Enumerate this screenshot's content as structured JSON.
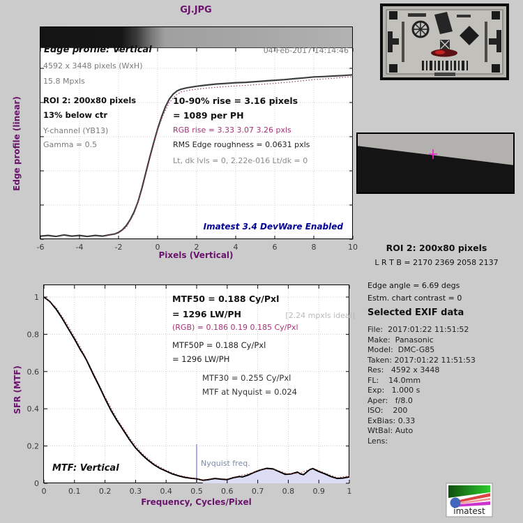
{
  "figure": {
    "bg_color": "#cbcbcb",
    "accent_purple": "#6b146e",
    "magenta": "#a83278",
    "navy": "#000099",
    "nyquist_line_color": "#a8aee8",
    "alias_fill_color": "#dcdcf4"
  },
  "edge_chart": {
    "heading": "Edge profile: Vertical",
    "datetime": "04-Feb-2017 14:14:46",
    "info1": "4592 x 3448 pixels (WxH)",
    "info2": "15.8 Mpxls",
    "roi_line1": "ROI 2:  200x80 pixels",
    "roi_line2": "13% below ctr",
    "channel": "Y-channel  (YB13)",
    "gamma": "Gamma = 0.5",
    "rise1": "10-90% rise = 3.16 pixels",
    "rise2": "= 1089 per PH",
    "rgb_rise": "RGB rise = 3.33  3.07  3.26 pxls",
    "roughness": "RMS Edge roughness = 0.0631 pxls",
    "levels": "Lt, dk lvls = 0, 2.22e-016   Lt/dk = 0",
    "watermark": "Imatest 3.4 DevWare Enabled"
  },
  "mtf_chart": {
    "mtf50_1": "MTF50 = 0.188 Cy/Pxl",
    "mtf50_2": "= 1296 LW/PH",
    "ideal": "[2.24 mpxls ideal]",
    "rgb": "(RGB) = 0.186  0.19  0.185 Cy/Pxl",
    "mtf50p_1": "MTF50P = 0.188 Cy/Pxl",
    "mtf50p_2": "= 1296 LW/PH",
    "mtf30": "MTF30 = 0.255 Cy/Pxl",
    "nyquist_mtf": "MTF at Nyquist = 0.024",
    "corner_label": "MTF: Vertical",
    "nyquist_label": "Nyquist freq."
  },
  "right_panel": {
    "roi_title": "ROI 2:  200x80 pixels",
    "roi_bounds": "L R  T B = 2170 2369  2058 2137",
    "edge_angle": "Edge angle = 6.69 degs",
    "chart_contrast": "Estm. chart contrast = 0",
    "exif_title": "Selected EXIF data",
    "exif_lines": [
      "File:  2017:01:22 11:51:52",
      "Make:  Panasonic",
      "Model:  DMC-G85",
      "Taken: 2017:01:22 11:51:53",
      "Res:   4592 x 3448",
      "FL:    14.0mm",
      "Exp:   1.000 s",
      "Aper:   f/8.0",
      "ISO:    200",
      "ExBias: 0.33",
      "WtBal: Auto",
      "Lens:"
    ]
  },
  "thumbnails": {
    "test_chart": "sfr-test-chart-photo",
    "edge_roi": "edge-roi-crop"
  },
  "logo": {
    "text": "imatest"
  },
  "chart_data": [
    {
      "type": "line",
      "title": "GJ.JPG",
      "xlabel": "Pixels (Vertical)",
      "ylabel": "Edge profile (linear)",
      "xlim": [
        -6,
        10
      ],
      "ylim": [
        0,
        1
      ],
      "xticks": [
        -6,
        -4,
        -2,
        0,
        2,
        4,
        6,
        8,
        10
      ],
      "yticks": [
        0,
        0.2,
        0.4,
        0.6,
        0.8,
        1
      ],
      "grid": true,
      "series": [
        {
          "name": "edge-profile-y-channel",
          "color": "#3f3f3f",
          "width": 2.2,
          "style": "solid",
          "points": [
            [
              -6,
              0.018
            ],
            [
              -5.6,
              0.022
            ],
            [
              -5.2,
              0.016
            ],
            [
              -4.8,
              0.025
            ],
            [
              -4.4,
              0.018
            ],
            [
              -4,
              0.022
            ],
            [
              -3.6,
              0.016
            ],
            [
              -3.2,
              0.022
            ],
            [
              -2.8,
              0.018
            ],
            [
              -2.5,
              0.025
            ],
            [
              -2.2,
              0.03
            ],
            [
              -2,
              0.04
            ],
            [
              -1.8,
              0.055
            ],
            [
              -1.6,
              0.08
            ],
            [
              -1.4,
              0.115
            ],
            [
              -1.2,
              0.16
            ],
            [
              -1,
              0.22
            ],
            [
              -0.8,
              0.3
            ],
            [
              -0.6,
              0.39
            ],
            [
              -0.4,
              0.48
            ],
            [
              -0.2,
              0.565
            ],
            [
              0,
              0.645
            ],
            [
              0.2,
              0.715
            ],
            [
              0.4,
              0.775
            ],
            [
              0.6,
              0.82
            ],
            [
              0.8,
              0.85
            ],
            [
              1,
              0.868
            ],
            [
              1.2,
              0.878
            ],
            [
              1.5,
              0.886
            ],
            [
              2,
              0.895
            ],
            [
              2.5,
              0.902
            ],
            [
              3,
              0.908
            ],
            [
              3.5,
              0.912
            ],
            [
              4,
              0.916
            ],
            [
              4.5,
              0.918
            ],
            [
              5,
              0.922
            ],
            [
              5.5,
              0.926
            ],
            [
              6,
              0.93
            ],
            [
              6.5,
              0.934
            ],
            [
              7,
              0.939
            ],
            [
              7.5,
              0.944
            ],
            [
              8,
              0.95
            ],
            [
              8.5,
              0.952
            ],
            [
              9,
              0.955
            ],
            [
              9.5,
              0.958
            ],
            [
              10,
              0.962
            ]
          ]
        },
        {
          "name": "edge-profile-fit",
          "color": "#a83278",
          "width": 1.2,
          "style": "dotted",
          "points": [
            [
              -2.6,
              0.02
            ],
            [
              -2,
              0.035
            ],
            [
              -1.6,
              0.07
            ],
            [
              -1.2,
              0.15
            ],
            [
              -0.8,
              0.29
            ],
            [
              -0.4,
              0.47
            ],
            [
              0,
              0.64
            ],
            [
              0.3,
              0.73
            ],
            [
              0.6,
              0.8
            ],
            [
              0.9,
              0.84
            ],
            [
              1.2,
              0.862
            ],
            [
              1.6,
              0.872
            ],
            [
              2,
              0.878
            ],
            [
              2.5,
              0.884
            ],
            [
              3,
              0.889
            ],
            [
              3.5,
              0.893
            ],
            [
              4,
              0.897
            ],
            [
              4.5,
              0.9
            ],
            [
              5,
              0.904
            ],
            [
              5.5,
              0.908
            ],
            [
              6,
              0.912
            ],
            [
              6.5,
              0.917
            ],
            [
              7,
              0.922
            ],
            [
              7.5,
              0.928
            ],
            [
              8,
              0.934
            ],
            [
              8.5,
              0.938
            ],
            [
              9,
              0.942
            ],
            [
              9.5,
              0.947
            ],
            [
              10,
              0.952
            ]
          ]
        }
      ]
    },
    {
      "type": "line",
      "title": "",
      "xlabel": "Frequency, Cycles/Pixel",
      "ylabel": "SFR (MTF)",
      "xlim": [
        0,
        1
      ],
      "ylim": [
        0,
        1
      ],
      "xticks": [
        0,
        0.1,
        0.2,
        0.3,
        0.4,
        0.5,
        0.6,
        0.7,
        0.8,
        0.9,
        1
      ],
      "yticks": [
        0,
        0.2,
        0.4,
        0.6,
        0.8,
        1
      ],
      "grid": true,
      "nyquist": {
        "x": 0.5,
        "height": 0.21
      },
      "fill": {
        "from_x": 0.52,
        "color": "#dcdcf4"
      },
      "key_values": {
        "mtf50": 0.188,
        "mtf50_lwph": 1296,
        "mtf50p": 0.188,
        "mtf30": 0.255,
        "mtf_at_nyquist": 0.024
      },
      "series": [
        {
          "name": "mtf-luminance",
          "color": "#000000",
          "width": 2,
          "style": "solid",
          "points": [
            [
              0,
              1.0
            ],
            [
              0.02,
              0.975
            ],
            [
              0.04,
              0.935
            ],
            [
              0.06,
              0.885
            ],
            [
              0.08,
              0.83
            ],
            [
              0.1,
              0.775
            ],
            [
              0.12,
              0.715
            ],
            [
              0.13,
              0.69
            ],
            [
              0.14,
              0.66
            ],
            [
              0.15,
              0.625
            ],
            [
              0.16,
              0.59
            ],
            [
              0.18,
              0.525
            ],
            [
              0.2,
              0.455
            ],
            [
              0.22,
              0.39
            ],
            [
              0.24,
              0.335
            ],
            [
              0.26,
              0.285
            ],
            [
              0.28,
              0.235
            ],
            [
              0.3,
              0.19
            ],
            [
              0.32,
              0.155
            ],
            [
              0.34,
              0.125
            ],
            [
              0.36,
              0.1
            ],
            [
              0.38,
              0.08
            ],
            [
              0.4,
              0.065
            ],
            [
              0.42,
              0.05
            ],
            [
              0.44,
              0.04
            ],
            [
              0.46,
              0.032
            ],
            [
              0.48,
              0.027
            ],
            [
              0.5,
              0.024
            ],
            [
              0.52,
              0.016
            ],
            [
              0.54,
              0.02
            ],
            [
              0.56,
              0.026
            ],
            [
              0.58,
              0.022
            ],
            [
              0.6,
              0.02
            ],
            [
              0.62,
              0.03
            ],
            [
              0.64,
              0.036
            ],
            [
              0.65,
              0.034
            ],
            [
              0.67,
              0.045
            ],
            [
              0.69,
              0.06
            ],
            [
              0.71,
              0.072
            ],
            [
              0.73,
              0.08
            ],
            [
              0.75,
              0.077
            ],
            [
              0.77,
              0.062
            ],
            [
              0.79,
              0.048
            ],
            [
              0.81,
              0.05
            ],
            [
              0.83,
              0.06
            ],
            [
              0.84,
              0.05
            ],
            [
              0.85,
              0.046
            ],
            [
              0.86,
              0.06
            ],
            [
              0.87,
              0.073
            ],
            [
              0.88,
              0.079
            ],
            [
              0.9,
              0.063
            ],
            [
              0.92,
              0.05
            ],
            [
              0.94,
              0.036
            ],
            [
              0.96,
              0.026
            ],
            [
              0.98,
              0.028
            ],
            [
              1,
              0.034
            ]
          ]
        },
        {
          "name": "mtf-channel-dotted",
          "color": "#993333",
          "width": 1,
          "style": "dotted",
          "points": [
            [
              0,
              1.0
            ],
            [
              0.04,
              0.945
            ],
            [
              0.08,
              0.845
            ],
            [
              0.12,
              0.73
            ],
            [
              0.16,
              0.6
            ],
            [
              0.2,
              0.465
            ],
            [
              0.24,
              0.345
            ],
            [
              0.28,
              0.245
            ],
            [
              0.32,
              0.162
            ],
            [
              0.36,
              0.106
            ],
            [
              0.4,
              0.07
            ],
            [
              0.44,
              0.044
            ],
            [
              0.48,
              0.03
            ],
            [
              0.52,
              0.018
            ],
            [
              0.56,
              0.028
            ],
            [
              0.6,
              0.022
            ],
            [
              0.64,
              0.04
            ],
            [
              0.68,
              0.055
            ],
            [
              0.72,
              0.078
            ],
            [
              0.76,
              0.072
            ],
            [
              0.8,
              0.05
            ],
            [
              0.84,
              0.055
            ],
            [
              0.88,
              0.082
            ],
            [
              0.92,
              0.055
            ],
            [
              0.96,
              0.03
            ],
            [
              1,
              0.04
            ]
          ]
        }
      ]
    }
  ]
}
